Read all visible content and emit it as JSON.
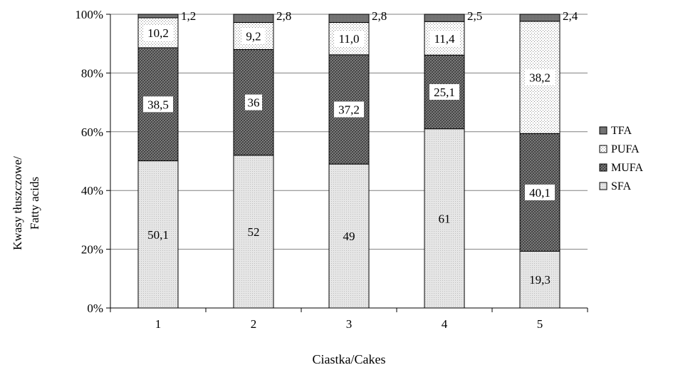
{
  "chart_data": {
    "type": "bar",
    "stacked": true,
    "percent_stacked": true,
    "categories": [
      "1",
      "2",
      "3",
      "4",
      "5"
    ],
    "series": [
      {
        "name": "SFA",
        "values": [
          50.1,
          52,
          49,
          61,
          19.3
        ],
        "labels": [
          "50,1",
          "52",
          "49",
          "61",
          "19,3"
        ]
      },
      {
        "name": "MUFA",
        "values": [
          38.5,
          36,
          37.2,
          25.1,
          40.1
        ],
        "labels": [
          "38,5",
          "36",
          "37,2",
          "25,1",
          "40,1"
        ]
      },
      {
        "name": "PUFA",
        "values": [
          10.2,
          9.2,
          11.0,
          11.4,
          38.2
        ],
        "labels": [
          "10,2",
          "9,2",
          "11,0",
          "11,4",
          "38,2"
        ]
      },
      {
        "name": "TFA",
        "values": [
          1.2,
          2.8,
          2.8,
          2.5,
          2.4
        ],
        "labels": [
          "1,2",
          "2,8",
          "2,8",
          "2,5",
          "2,4"
        ]
      }
    ],
    "y_ticks": [
      "0%",
      "20%",
      "40%",
      "60%",
      "80%",
      "100%"
    ],
    "ylim": [
      0,
      100
    ],
    "ylabel_line1": "Kwasy tłuszczowe/",
    "ylabel_line2": "Fatty acids",
    "xlabel": "Ciastka/Cakes",
    "grid": true,
    "legend_position": "right",
    "legend_order": [
      "TFA",
      "PUFA",
      "MUFA",
      "SFA"
    ],
    "colors": {
      "SFA": "#e2e2e2",
      "MUFA": "#5a5a5a",
      "PUFA": "#f4f4f4",
      "TFA": "#7a7a7a"
    }
  }
}
